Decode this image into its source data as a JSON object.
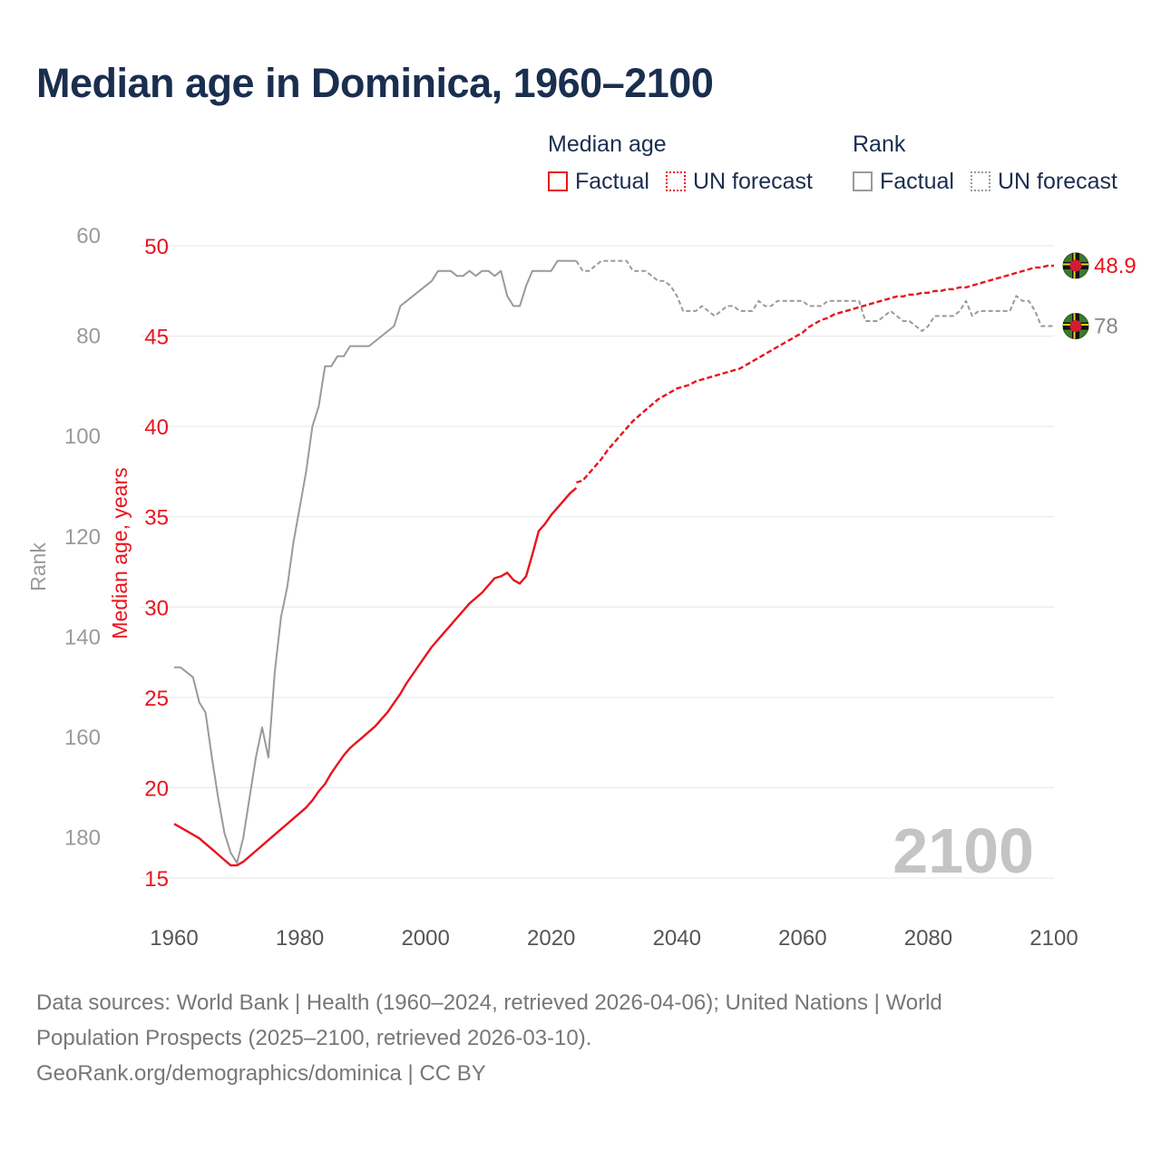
{
  "title": "Median age in Dominica, 1960–2100",
  "legend": {
    "median_group": "Median age",
    "rank_group": "Rank",
    "factual": "Factual",
    "forecast": "UN forecast"
  },
  "colors": {
    "median": "#e8141e",
    "rank": "#9a9a9a",
    "title": "#1a2e4f",
    "grid": "#e6e6e6",
    "axis_text": "#9a9a9a",
    "year_watermark": "#c4c4c4"
  },
  "footer": {
    "line1": "Data sources: World Bank | Health (1960–2024, retrieved 2026-04-06); United Nations | World",
    "line2": "Population Prospects (2025–2100, retrieved 2026-03-10).",
    "line3": "GeoRank.org/demographics/dominica | CC BY"
  },
  "chart_data": {
    "type": "line",
    "year_label": "2100",
    "xlabel": "",
    "ylabel_left_rank": "Rank",
    "ylabel_median": "Median age, years",
    "xlim": [
      1960,
      2100
    ],
    "x_ticks": [
      1960,
      1980,
      2000,
      2020,
      2040,
      2060,
      2080,
      2100
    ],
    "median_ylim": [
      15,
      50
    ],
    "median_ticks": [
      15,
      20,
      25,
      30,
      35,
      40,
      45,
      50
    ],
    "rank_ylim": [
      62,
      188
    ],
    "rank_ticks": [
      60,
      80,
      100,
      120,
      140,
      160,
      180
    ],
    "end_labels": {
      "median": "48.9",
      "rank": "78"
    },
    "series": [
      {
        "name": "Median age",
        "segment": "Factual",
        "x": [
          1960,
          1961,
          1962,
          1963,
          1964,
          1965,
          1966,
          1967,
          1968,
          1969,
          1970,
          1971,
          1972,
          1973,
          1974,
          1975,
          1976,
          1977,
          1978,
          1979,
          1980,
          1981,
          1982,
          1983,
          1984,
          1985,
          1986,
          1987,
          1988,
          1989,
          1990,
          1991,
          1992,
          1993,
          1994,
          1995,
          1996,
          1997,
          1998,
          1999,
          2000,
          2001,
          2002,
          2003,
          2004,
          2005,
          2006,
          2007,
          2008,
          2009,
          2010,
          2011,
          2012,
          2013,
          2014,
          2015,
          2016,
          2017,
          2018,
          2019,
          2020,
          2021,
          2022,
          2023,
          2024
        ],
        "values": [
          18.0,
          17.8,
          17.6,
          17.4,
          17.2,
          16.9,
          16.6,
          16.3,
          16.0,
          15.7,
          15.7,
          15.9,
          16.2,
          16.5,
          16.8,
          17.1,
          17.4,
          17.7,
          18.0,
          18.3,
          18.6,
          18.9,
          19.3,
          19.8,
          20.2,
          20.8,
          21.3,
          21.8,
          22.2,
          22.5,
          22.8,
          23.1,
          23.4,
          23.8,
          24.2,
          24.7,
          25.2,
          25.8,
          26.3,
          26.8,
          27.3,
          27.8,
          28.2,
          28.6,
          29.0,
          29.4,
          29.8,
          30.2,
          30.5,
          30.8,
          31.2,
          31.6,
          31.7,
          31.9,
          31.5,
          31.3,
          31.7,
          32.9,
          34.2,
          34.6,
          35.1,
          35.5,
          35.9,
          36.3,
          36.6
        ]
      },
      {
        "name": "Median age",
        "segment": "UN forecast",
        "x": [
          2024,
          2025,
          2026,
          2027,
          2028,
          2029,
          2030,
          2031,
          2032,
          2033,
          2034,
          2035,
          2036,
          2037,
          2038,
          2039,
          2040,
          2041,
          2042,
          2043,
          2044,
          2045,
          2046,
          2047,
          2048,
          2049,
          2050,
          2051,
          2052,
          2053,
          2054,
          2055,
          2056,
          2057,
          2058,
          2059,
          2060,
          2061,
          2062,
          2063,
          2064,
          2065,
          2066,
          2067,
          2068,
          2069,
          2070,
          2071,
          2072,
          2073,
          2074,
          2075,
          2076,
          2077,
          2078,
          2079,
          2080,
          2081,
          2082,
          2083,
          2084,
          2085,
          2086,
          2087,
          2088,
          2089,
          2090,
          2091,
          2092,
          2093,
          2094,
          2095,
          2096,
          2097,
          2098,
          2099,
          2100
        ],
        "values": [
          36.9,
          37.0,
          37.4,
          37.8,
          38.2,
          38.7,
          39.1,
          39.5,
          39.9,
          40.3,
          40.6,
          40.9,
          41.2,
          41.5,
          41.7,
          41.9,
          42.1,
          42.2,
          42.3,
          42.5,
          42.6,
          42.7,
          42.8,
          42.9,
          43.0,
          43.1,
          43.2,
          43.4,
          43.6,
          43.8,
          44.0,
          44.2,
          44.4,
          44.6,
          44.8,
          45.0,
          45.2,
          45.5,
          45.7,
          45.9,
          46.0,
          46.2,
          46.3,
          46.4,
          46.5,
          46.6,
          46.7,
          46.8,
          46.9,
          47.0,
          47.1,
          47.2,
          47.2,
          47.3,
          47.3,
          47.4,
          47.4,
          47.5,
          47.5,
          47.6,
          47.6,
          47.7,
          47.7,
          47.8,
          47.9,
          48.0,
          48.1,
          48.2,
          48.3,
          48.4,
          48.5,
          48.6,
          48.7,
          48.8,
          48.8,
          48.9,
          48.9
        ]
      },
      {
        "name": "Rank",
        "segment": "Factual",
        "x": [
          1960,
          1961,
          1962,
          1963,
          1964,
          1965,
          1966,
          1967,
          1968,
          1969,
          1970,
          1971,
          1972,
          1973,
          1974,
          1975,
          1976,
          1977,
          1978,
          1979,
          1980,
          1981,
          1982,
          1983,
          1984,
          1985,
          1986,
          1987,
          1988,
          1989,
          1990,
          1991,
          1992,
          1993,
          1994,
          1995,
          1996,
          1997,
          1998,
          1999,
          2000,
          2001,
          2002,
          2003,
          2004,
          2005,
          2006,
          2007,
          2008,
          2009,
          2010,
          2011,
          2012,
          2013,
          2014,
          2015,
          2016,
          2017,
          2018,
          2019,
          2020,
          2021,
          2022,
          2023,
          2024
        ],
        "values": [
          146,
          146,
          147,
          148,
          153,
          155,
          164,
          172,
          179,
          183,
          185,
          180,
          172,
          164,
          158,
          164,
          147,
          136,
          130,
          121,
          114,
          107,
          98,
          94,
          86,
          86,
          84,
          84,
          82,
          82,
          82,
          82,
          81,
          80,
          79,
          78,
          74,
          73,
          72,
          71,
          70,
          69,
          67,
          67,
          67,
          68,
          68,
          67,
          68,
          67,
          67,
          68,
          67,
          72,
          74,
          74,
          70,
          67,
          67,
          67,
          67,
          65,
          65,
          65,
          65
        ]
      },
      {
        "name": "Rank",
        "segment": "UN forecast",
        "x": [
          2024,
          2025,
          2026,
          2027,
          2028,
          2029,
          2030,
          2031,
          2032,
          2033,
          2034,
          2035,
          2036,
          2037,
          2038,
          2039,
          2040,
          2041,
          2042,
          2043,
          2044,
          2045,
          2046,
          2047,
          2048,
          2049,
          2050,
          2051,
          2052,
          2053,
          2054,
          2055,
          2056,
          2057,
          2058,
          2059,
          2060,
          2061,
          2062,
          2063,
          2064,
          2065,
          2066,
          2067,
          2068,
          2069,
          2070,
          2071,
          2072,
          2073,
          2074,
          2075,
          2076,
          2077,
          2078,
          2079,
          2080,
          2081,
          2082,
          2083,
          2084,
          2085,
          2086,
          2087,
          2088,
          2089,
          2090,
          2091,
          2092,
          2093,
          2094,
          2095,
          2096,
          2097,
          2098,
          2099,
          2100
        ],
        "values": [
          65,
          67,
          67,
          66,
          65,
          65,
          65,
          65,
          65,
          67,
          67,
          67,
          68,
          69,
          69,
          70,
          72,
          75,
          75,
          75,
          74,
          75,
          76,
          75,
          74,
          74,
          75,
          75,
          75,
          73,
          74,
          74,
          73,
          73,
          73,
          73,
          73,
          74,
          74,
          74,
          73,
          73,
          73,
          73,
          73,
          73,
          77,
          77,
          77,
          76,
          75,
          76,
          77,
          77,
          78,
          79,
          78,
          76,
          76,
          76,
          76,
          75,
          73,
          76,
          75,
          75,
          75,
          75,
          75,
          75,
          72,
          73,
          73,
          75,
          78,
          78,
          78
        ]
      }
    ]
  }
}
